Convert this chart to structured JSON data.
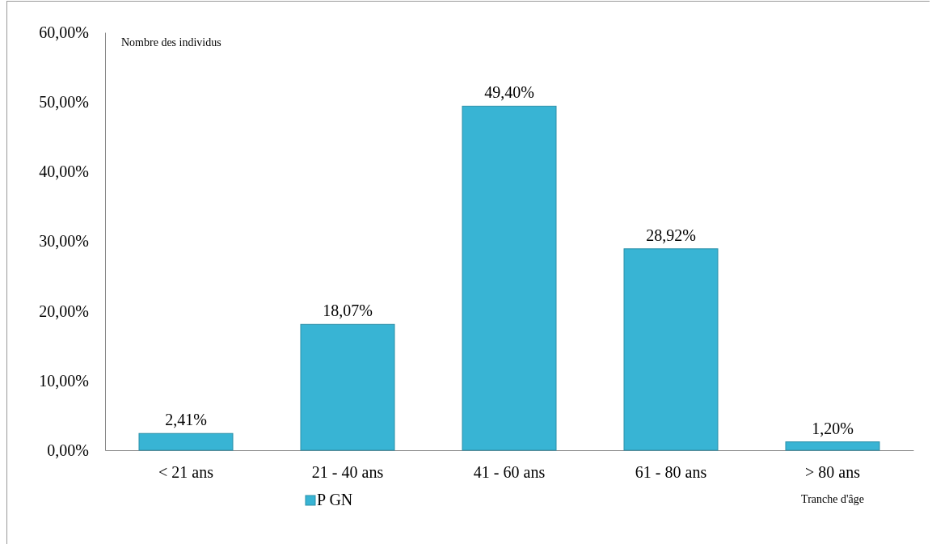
{
  "chart_data": {
    "type": "bar",
    "ylabel": "Nombre des individus",
    "xlabel": "Tranche d'âge",
    "categories": [
      "< 21 ans",
      "21 - 40 ans",
      "41 - 60 ans",
      "61 - 80 ans",
      "> 80 ans"
    ],
    "series": [
      {
        "name": "P GN",
        "color": "#38b4d4",
        "values": [
          2.41,
          18.07,
          49.4,
          28.92,
          1.2
        ],
        "value_labels": [
          "2,41%",
          "18,07%",
          "49,40%",
          "28,92%",
          "1,20%"
        ]
      }
    ],
    "ylim": [
      0,
      60
    ],
    "yticks": [
      {
        "value": 0,
        "label": "0,00%"
      },
      {
        "value": 10,
        "label": "10,00%"
      },
      {
        "value": 20,
        "label": "20,00%"
      },
      {
        "value": 30,
        "label": "30,00%"
      },
      {
        "value": 40,
        "label": "40,00%"
      },
      {
        "value": 50,
        "label": "50,00%"
      },
      {
        "value": 60,
        "label": "60,00%"
      }
    ],
    "grid": false,
    "legend": "bottom"
  }
}
